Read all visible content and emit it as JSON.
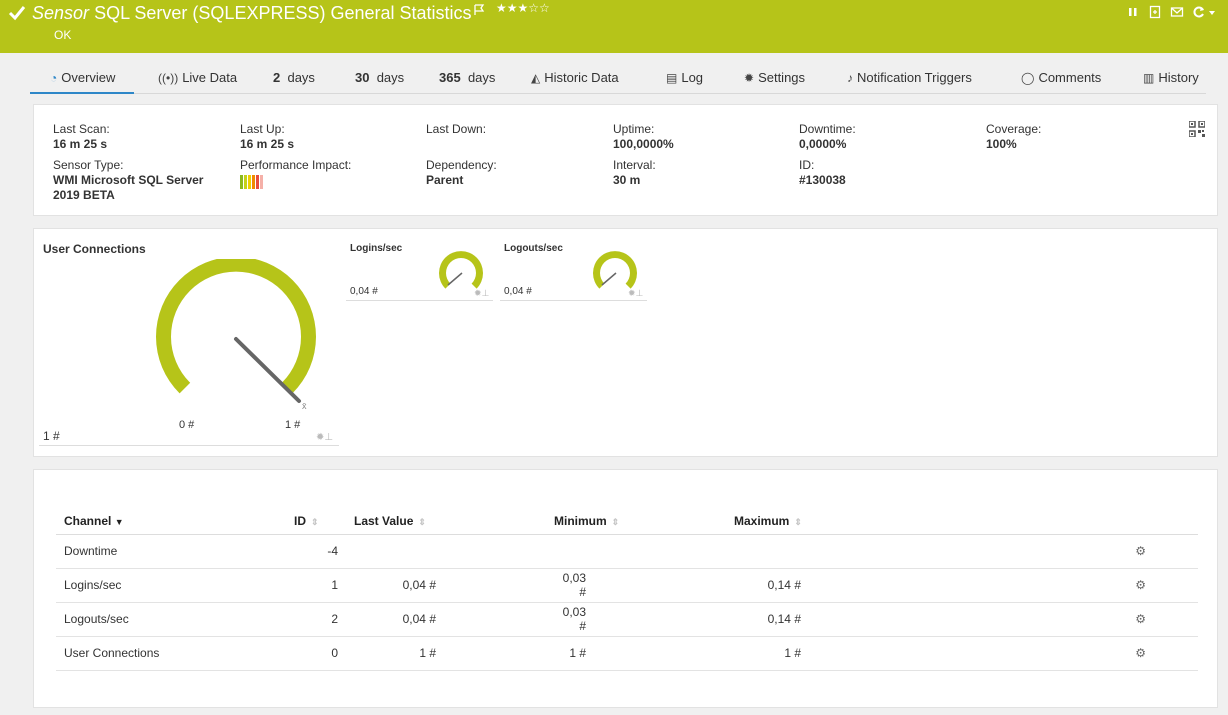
{
  "header": {
    "sensor_kind": "Sensor",
    "title": "SQL Server (SQLEXPRESS) General Statistics",
    "stars": "★★★☆☆",
    "status": "OK",
    "bg_color": "#b6c419"
  },
  "tabs": [
    {
      "label": "Overview",
      "icon": "overview-icon"
    },
    {
      "label": "Live Data",
      "icon": "live-data-icon"
    },
    {
      "num": "2",
      "label": "days"
    },
    {
      "num": "30",
      "label": "days"
    },
    {
      "num": "365",
      "label": "days"
    },
    {
      "label": "Historic Data",
      "icon": "historic-data-icon"
    },
    {
      "label": "Log",
      "icon": "log-icon"
    },
    {
      "label": "Settings",
      "icon": "gear-icon"
    },
    {
      "label": "Notification Triggers",
      "icon": "bell-icon"
    },
    {
      "label": "Comments",
      "icon": "comment-icon"
    },
    {
      "label": "History",
      "icon": "history-icon"
    }
  ],
  "info": {
    "last_scan": {
      "label": "Last Scan:",
      "value": "16 m 25 s"
    },
    "last_up": {
      "label": "Last Up:",
      "value": "16 m 25 s"
    },
    "last_down": {
      "label": "Last Down:",
      "value": ""
    },
    "uptime": {
      "label": "Uptime:",
      "value": "100,0000%"
    },
    "downtime": {
      "label": "Downtime:",
      "value": "0,0000%"
    },
    "coverage": {
      "label": "Coverage:",
      "value": "100%"
    },
    "sensor_type": {
      "label": "Sensor Type:",
      "value_line1": "WMI Microsoft SQL Server",
      "value_line2": "2019 BETA"
    },
    "performance_impact": {
      "label": "Performance Impact:",
      "colors": [
        "#8db91e",
        "#c5d21a",
        "#f0d000",
        "#f08a00",
        "#e74c3c",
        "#f5b0a8"
      ]
    },
    "dependency": {
      "label": "Dependency:",
      "value": "Parent"
    },
    "interval": {
      "label": "Interval:",
      "value": "30 m"
    },
    "id": {
      "label": "ID:",
      "value": "#130038"
    }
  },
  "gauges": {
    "main": {
      "title": "User Connections",
      "value": "1 #",
      "min_label": "0 #",
      "max_label": "1 #",
      "avg_mark": "x̄"
    },
    "logins": {
      "title": "Logins/sec",
      "value": "0,04 #"
    },
    "logouts": {
      "title": "Logouts/sec",
      "value": "0,04 #"
    }
  },
  "table": {
    "headers": {
      "channel": "Channel",
      "id": "ID",
      "last_value": "Last Value",
      "minimum": "Minimum",
      "maximum": "Maximum"
    },
    "rows": [
      {
        "channel": "Downtime",
        "id": "-4",
        "last": "",
        "min": "",
        "max": ""
      },
      {
        "channel": "Logins/sec",
        "id": "1",
        "last": "0,04 #",
        "min": "0,03 #",
        "max": "0,14 #"
      },
      {
        "channel": "Logouts/sec",
        "id": "2",
        "last": "0,04 #",
        "min": "0,03 #",
        "max": "0,14 #"
      },
      {
        "channel": "User Connections",
        "id": "0",
        "last": "1 #",
        "min": "1 #",
        "max": "1 #"
      }
    ]
  }
}
